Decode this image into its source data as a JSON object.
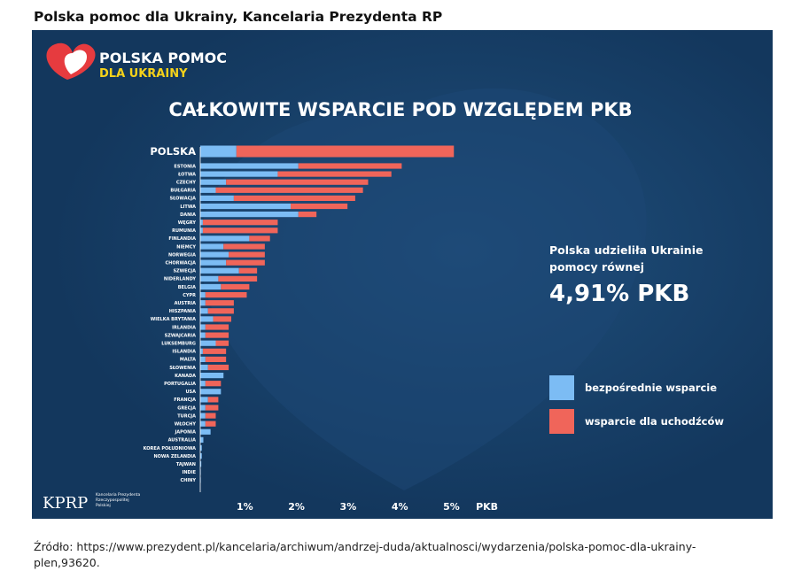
{
  "page": {
    "title": "Polska pomoc dla Ukrainy, Kancelaria Prezydenta RP",
    "source": "Źródło: https://www.prezydent.pl/kancelaria/archiwum/andrzej-duda/aktualnosci/wydarzenia/polska-pomoc-dla-ukrainy-plen,93620."
  },
  "logo": {
    "line1": "POLSKA POMOC",
    "line2": "DLA UKRAINY",
    "icon": "heart-icon",
    "colors": {
      "heart_red": "#e63b3f",
      "heart_white": "#ffffff",
      "line2_yellow": "#f5d21a"
    }
  },
  "footer_logo": {
    "text": "KPRP",
    "caption": [
      "Kancelaria Prezydenta",
      "Rzeczypospolitej",
      "Polskiej"
    ]
  },
  "callout": {
    "line1": "Polska udzieliła Ukrainie",
    "line2": "pomocy równej",
    "value": "4,91% PKB"
  },
  "colors": {
    "background": "#13375d",
    "direct": "#7cbcf4",
    "refugee": "#f0655a",
    "text": "#ffffff"
  },
  "chart_data": {
    "type": "bar",
    "orientation": "horizontal",
    "stacked": true,
    "title": "CAŁKOWITE WSPARCIE  POD WZGLĘDEM PKB",
    "xlabel": "PKB",
    "xlim": [
      0,
      5.3
    ],
    "xticks": [
      1,
      2,
      3,
      4,
      5
    ],
    "xtick_labels": [
      "1%",
      "2%",
      "3%",
      "4%",
      "5%"
    ],
    "grid": false,
    "legend_position": "right",
    "categories": [
      "POLSKA",
      "ESTONIA",
      "ŁOTWA",
      "CZECHY",
      "BUŁGARIA",
      "SŁOWACJA",
      "LITWA",
      "DANIA",
      "WĘGRY",
      "RUMUNIA",
      "FINLANDIA",
      "NIEMCY",
      "NORWEGIA",
      "CHORWACJA",
      "SZWECJA",
      "NIDERLANDY",
      "BELGIA",
      "CYPR",
      "AUSTRIA",
      "HISZPANIA",
      "WIELKA BRYTANIA",
      "IRLANDIA",
      "SZWAJCARIA",
      "LUKSEMBURG",
      "ISLANDIA",
      "MALTA",
      "SŁOWENIA",
      "KANADA",
      "PORTUGALIA",
      "USA",
      "FRANCJA",
      "GRECJA",
      "TURCJA",
      "WŁOCHY",
      "JAPONIA",
      "AUSTRALIA",
      "KOREA POŁUDNIOWA",
      "NOWA ZELANDIA",
      "TAJWAN",
      "INDIE",
      "CHINY"
    ],
    "series": [
      {
        "name": "bezpośrednie wsparcie",
        "values": [
          0.7,
          1.9,
          1.5,
          0.5,
          0.3,
          0.65,
          1.75,
          1.9,
          0.05,
          0.05,
          0.95,
          0.45,
          0.55,
          0.5,
          0.75,
          0.35,
          0.4,
          0.1,
          0.1,
          0.15,
          0.25,
          0.1,
          0.1,
          0.3,
          0.05,
          0.1,
          0.15,
          0.45,
          0.1,
          0.4,
          0.15,
          0.1,
          0.1,
          0.1,
          0.2,
          0.06,
          0.03,
          0.03,
          0.02,
          0.01,
          0.01
        ]
      },
      {
        "name": "wsparcie dla uchodźców",
        "values": [
          4.21,
          2.0,
          2.2,
          2.75,
          2.85,
          2.35,
          1.1,
          0.35,
          1.45,
          1.45,
          0.4,
          0.8,
          0.7,
          0.75,
          0.35,
          0.75,
          0.55,
          0.8,
          0.55,
          0.5,
          0.35,
          0.45,
          0.45,
          0.25,
          0.45,
          0.4,
          0.4,
          0.0,
          0.3,
          0.0,
          0.2,
          0.25,
          0.2,
          0.2,
          0.0,
          0.0,
          0.0,
          0.0,
          0.0,
          0.0,
          0.0
        ]
      }
    ]
  }
}
